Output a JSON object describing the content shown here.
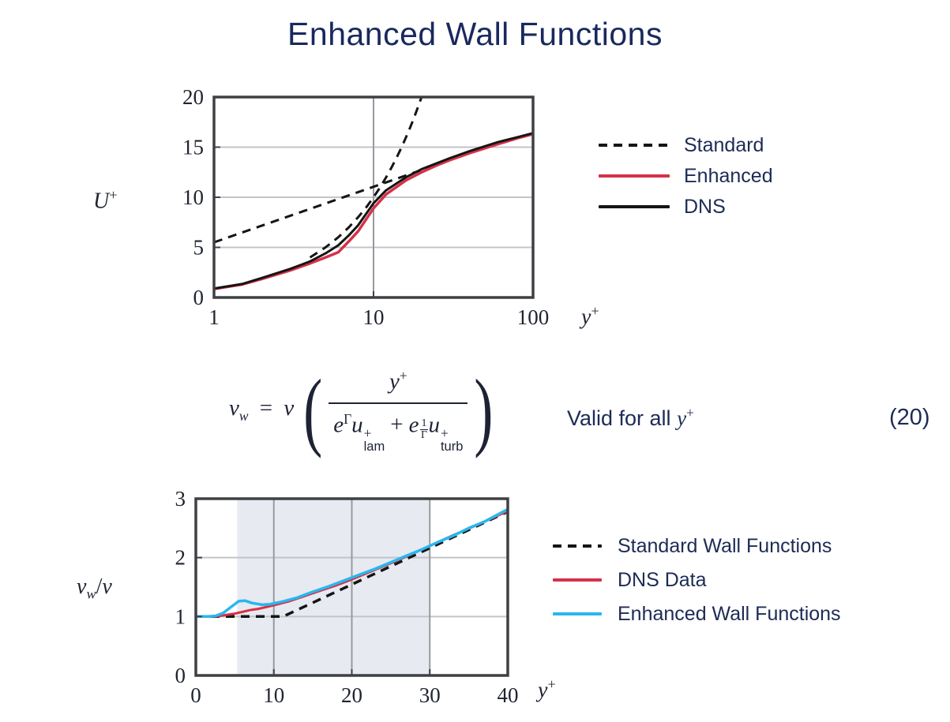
{
  "slide": {
    "title": "Enhanced Wall Functions",
    "accent_navy": "#19295e",
    "accent_red": "#d63148",
    "accent_blue": "#29b7ef"
  },
  "equation": {
    "lhs_html": "<i>&#957;</i><sub><i>w</i></sub> <span class=\"op\">=</span> <i>&#957;</i>",
    "num_html": "<i>y</i><sup>+</sup>",
    "den_html": "<i>e</i><sup>&#915;</sup><i>u</i><span class=\"ss\"><span>+</span><span class=\"txt\">lam</span></span><span class=\"op\">+</span><i>e</i><span class=\"mf\"><span class=\"mfn\">1</span><span>&#915;</span></span><i>u</i><span class=\"ss\"><span>+</span><span class=\"txt\">turb</span></span>",
    "valid_html": "Valid for all <i>y</i><sup>+</sup>",
    "number": "(20)"
  },
  "chart_data": [
    {
      "type": "line",
      "title": "Law of the wall: U+ vs y+",
      "xlabel_html": "<i>y</i><sup>+</sup>",
      "ylabel_html": "<i>U</i><sup>+</sup>",
      "x_scale": "log",
      "xlim": [
        1,
        100
      ],
      "ylim": [
        0,
        20
      ],
      "x_ticks": [
        {
          "v": 1,
          "label": "1"
        },
        {
          "v": 10,
          "label": "10"
        },
        {
          "v": 100,
          "label": "100"
        }
      ],
      "y_ticks": [
        {
          "v": 0,
          "label": "0"
        },
        {
          "v": 5,
          "label": "5"
        },
        {
          "v": 10,
          "label": "10"
        },
        {
          "v": 15,
          "label": "15"
        },
        {
          "v": 20,
          "label": "20"
        }
      ],
      "grid_x": [
        10
      ],
      "grid_y": [
        5,
        10,
        15
      ],
      "series": [
        {
          "name": "Standard (linear sublayer U+=y+)",
          "color": "#151515",
          "width": 3,
          "dash": "11 8",
          "points": [
            [
              4,
              4
            ],
            [
              5,
              5
            ],
            [
              6,
              6
            ],
            [
              7,
              7
            ],
            [
              8,
              8
            ],
            [
              9,
              9
            ],
            [
              10,
              10
            ],
            [
              11,
              11
            ],
            [
              12,
              12
            ],
            [
              13,
              13
            ],
            [
              14,
              14
            ],
            [
              15,
              15
            ],
            [
              16,
              16
            ],
            [
              17,
              17
            ],
            [
              18,
              18
            ],
            [
              19,
              19
            ],
            [
              20,
              20
            ],
            [
              21,
              21
            ]
          ]
        },
        {
          "name": "Standard (log law)",
          "color": "#151515",
          "width": 3,
          "dash": "11 8",
          "points": [
            [
              1,
              5.5
            ],
            [
              28,
              13.53
            ]
          ]
        },
        {
          "name": "Enhanced",
          "color": "#d63148",
          "width": 3.5,
          "points": [
            [
              1,
              0.85
            ],
            [
              1.5,
              1.3
            ],
            [
              2,
              1.85
            ],
            [
              3,
              2.7
            ],
            [
              4,
              3.4
            ],
            [
              5,
              4.0
            ],
            [
              6,
              4.5
            ],
            [
              7,
              5.6
            ],
            [
              8,
              6.6
            ],
            [
              10,
              8.9
            ],
            [
              12,
              10.3
            ],
            [
              16,
              11.7
            ],
            [
              20,
              12.5
            ],
            [
              25,
              13.2
            ],
            [
              30,
              13.7
            ],
            [
              40,
              14.4
            ],
            [
              60,
              15.3
            ],
            [
              80,
              15.9
            ],
            [
              100,
              16.3
            ]
          ]
        },
        {
          "name": "DNS",
          "color": "#151515",
          "width": 3,
          "points": [
            [
              1,
              0.9
            ],
            [
              1.5,
              1.35
            ],
            [
              2,
              1.95
            ],
            [
              3,
              2.85
            ],
            [
              4,
              3.6
            ],
            [
              5,
              4.4
            ],
            [
              6,
              5.2
            ],
            [
              7,
              6.2
            ],
            [
              8,
              7.2
            ],
            [
              10,
              9.4
            ],
            [
              12,
              10.7
            ],
            [
              16,
              12.0
            ],
            [
              20,
              12.8
            ],
            [
              25,
              13.4
            ],
            [
              30,
              13.9
            ],
            [
              40,
              14.6
            ],
            [
              60,
              15.5
            ],
            [
              80,
              16.0
            ],
            [
              100,
              16.4
            ]
          ]
        }
      ],
      "legend": [
        {
          "label": "Standard",
          "color": "#151515",
          "dash": true
        },
        {
          "label": "Enhanced",
          "color": "#d63148",
          "dash": false
        },
        {
          "label": "DNS",
          "color": "#151515",
          "dash": false
        }
      ]
    },
    {
      "type": "line",
      "title": "Wall viscosity ratio vs y+",
      "xlabel_html": "<i>y</i><sup>+</sup>",
      "ylabel_html": "<i>&#957;</i><sub><i>w</i></sub>/<i>&#957;</i>",
      "x_scale": "linear",
      "xlim": [
        0,
        40
      ],
      "ylim": [
        0,
        3
      ],
      "x_ticks": [
        {
          "v": 0,
          "label": "0"
        },
        {
          "v": 10,
          "label": "10"
        },
        {
          "v": 20,
          "label": "20"
        },
        {
          "v": 30,
          "label": "30"
        },
        {
          "v": 40,
          "label": "40"
        }
      ],
      "y_ticks": [
        {
          "v": 0,
          "label": "0"
        },
        {
          "v": 1,
          "label": "1"
        },
        {
          "v": 2,
          "label": "2"
        },
        {
          "v": 3,
          "label": "3"
        }
      ],
      "grid_x": [
        10,
        20,
        30
      ],
      "grid_y": [
        1,
        2
      ],
      "band": {
        "x0": 5.3,
        "x1": 30,
        "color": "#e7eaf1"
      },
      "series": [
        {
          "name": "Standard Wall Functions",
          "color": "#151515",
          "width": 3.5,
          "dash": "11 8",
          "points": [
            [
              0,
              1
            ],
            [
              11.2,
              1
            ],
            [
              40,
              2.78
            ]
          ]
        },
        {
          "name": "DNS Data",
          "color": "#d63148",
          "width": 3,
          "points": [
            [
              0,
              1.0
            ],
            [
              2,
              1.0
            ],
            [
              3,
              1.01
            ],
            [
              4,
              1.03
            ],
            [
              5,
              1.05
            ],
            [
              6,
              1.08
            ],
            [
              7,
              1.11
            ],
            [
              8,
              1.13
            ],
            [
              9,
              1.16
            ],
            [
              10,
              1.19
            ],
            [
              12,
              1.26
            ],
            [
              14,
              1.35
            ],
            [
              16,
              1.44
            ],
            [
              18,
              1.53
            ],
            [
              20,
              1.63
            ],
            [
              22,
              1.74
            ],
            [
              24,
              1.85
            ],
            [
              26,
              1.96
            ],
            [
              28,
              2.08
            ],
            [
              30,
              2.2
            ],
            [
              33,
              2.38
            ],
            [
              36,
              2.55
            ],
            [
              40,
              2.79
            ]
          ]
        },
        {
          "name": "Enhanced Wall Functions",
          "color": "#29b7ef",
          "width": 3.5,
          "points": [
            [
              0,
              1.0
            ],
            [
              1.5,
              1.0
            ],
            [
              2.5,
              1.01
            ],
            [
              3.5,
              1.06
            ],
            [
              4.5,
              1.16
            ],
            [
              5.5,
              1.26
            ],
            [
              6.3,
              1.27
            ],
            [
              7.2,
              1.23
            ],
            [
              8.5,
              1.2
            ],
            [
              9.5,
              1.21
            ],
            [
              11,
              1.25
            ],
            [
              13,
              1.32
            ],
            [
              15,
              1.42
            ],
            [
              17,
              1.51
            ],
            [
              19,
              1.61
            ],
            [
              21,
              1.71
            ],
            [
              23,
              1.81
            ],
            [
              25,
              1.92
            ],
            [
              27,
              2.03
            ],
            [
              29,
              2.14
            ],
            [
              31,
              2.26
            ],
            [
              33,
              2.37
            ],
            [
              35,
              2.5
            ],
            [
              37,
              2.61
            ],
            [
              40,
              2.82
            ]
          ]
        }
      ],
      "legend": [
        {
          "label": "Standard Wall Functions",
          "color": "#151515",
          "dash": true
        },
        {
          "label": "DNS Data",
          "color": "#d63148",
          "dash": false
        },
        {
          "label": "Enhanced Wall Functions",
          "color": "#29b7ef",
          "dash": false
        }
      ]
    }
  ]
}
